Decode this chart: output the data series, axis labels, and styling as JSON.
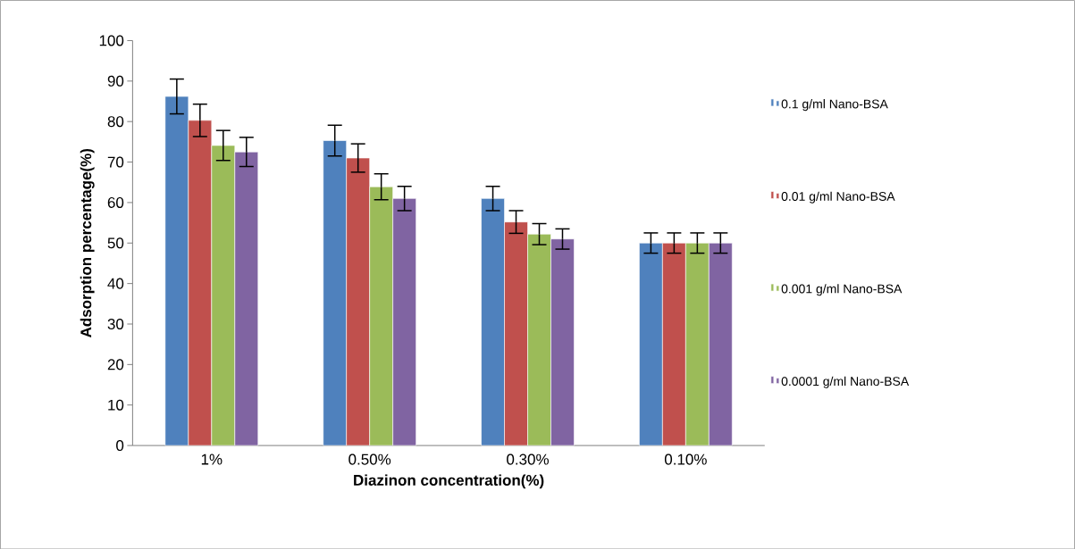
{
  "chart_data": {
    "type": "bar",
    "xlabel": "Diazinon  concentration(%)",
    "ylabel": "Adsorption percentage(%)",
    "categories": [
      "1%",
      "0.50%",
      "0.30%",
      "0.10%"
    ],
    "series": [
      {
        "name": "0.1 g/ml Nano-BSA",
        "color": "#4f81bd",
        "values": [
          86.2,
          75.3,
          61,
          50
        ],
        "errors": [
          4.3,
          3.8,
          3,
          2.5
        ]
      },
      {
        "name": "0.01 g/ml Nano-BSA",
        "color": "#c0504d",
        "values": [
          80.3,
          71,
          55.2,
          50
        ],
        "errors": [
          4,
          3.5,
          2.8,
          2.5
        ]
      },
      {
        "name": "0.001 g/ml Nano-BSA",
        "color": "#9bbb59",
        "values": [
          74.1,
          63.9,
          52.2,
          50
        ],
        "errors": [
          3.7,
          3.2,
          2.6,
          2.5
        ]
      },
      {
        "name": "0.0001 g/ml Nano-BSA",
        "color": "#8064a2",
        "values": [
          72.5,
          61,
          51,
          50
        ],
        "errors": [
          3.6,
          3,
          2.5,
          2.5
        ]
      }
    ],
    "ylim": [
      0,
      100
    ],
    "yticks": [
      0,
      10,
      20,
      30,
      40,
      50,
      60,
      70,
      80,
      90,
      100
    ],
    "grid": false,
    "legend": "right"
  }
}
